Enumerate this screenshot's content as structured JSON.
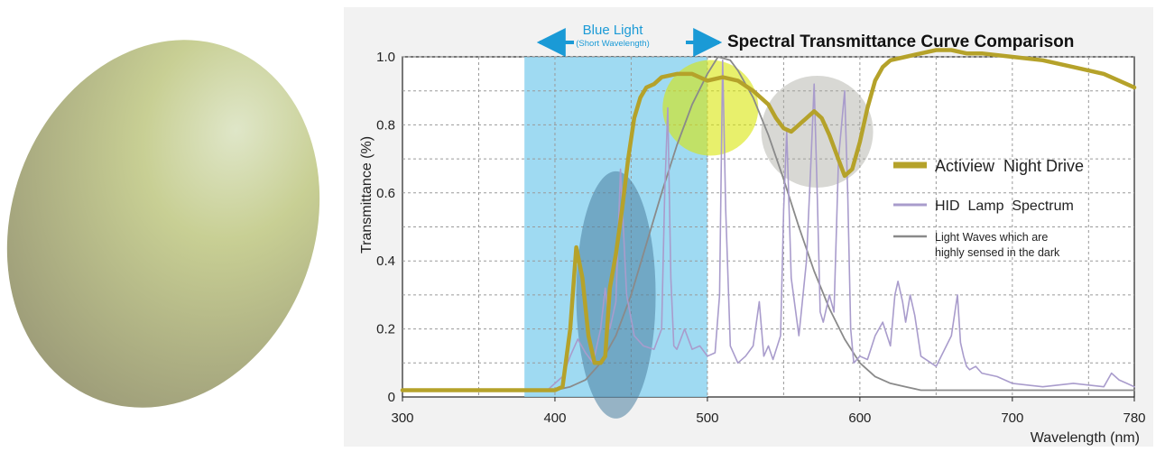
{
  "chart_data": {
    "type": "line",
    "title": "Spectral Transmittance Curve Comparison",
    "xlabel": "Wavelength (nm)",
    "ylabel": "Transmittance (%)",
    "xlim": [
      300,
      780
    ],
    "ylim": [
      0,
      1.0
    ],
    "x_ticks": [
      "300",
      "400",
      "500",
      "600",
      "700",
      "780"
    ],
    "x_tick_values": [
      300,
      400,
      500,
      600,
      700,
      780
    ],
    "y_ticks": [
      "0",
      "0.2",
      "0.4",
      "0.6",
      "0.8",
      "1.0"
    ],
    "y_tick_values": [
      0,
      0.2,
      0.4,
      0.6,
      0.8,
      1.0
    ],
    "grid": true,
    "legend_position": "right",
    "blue_light_band": {
      "label": "Blue Light",
      "sublabel": "(Short Wavelength)",
      "range": [
        380,
        500
      ],
      "color": "#8ed3f0"
    },
    "highlights": [
      {
        "shape": "ellipse",
        "center": [
          440,
          0.3
        ],
        "color": "#4a7fa0"
      },
      {
        "shape": "circle",
        "center": [
          502,
          0.85
        ],
        "color": "#d8e60a"
      },
      {
        "shape": "circle",
        "center": [
          572,
          0.78
        ],
        "color": "#a8a8a0"
      }
    ],
    "series": [
      {
        "name": "Actiview  Night Drive",
        "color": "#b5a22a",
        "x": [
          300,
          390,
          400,
          405,
          410,
          414,
          418,
          422,
          426,
          430,
          433,
          436,
          440,
          444,
          448,
          452,
          456,
          460,
          465,
          470,
          480,
          490,
          500,
          510,
          520,
          530,
          540,
          545,
          550,
          555,
          560,
          565,
          570,
          575,
          580,
          585,
          590,
          595,
          600,
          605,
          610,
          615,
          620,
          630,
          640,
          650,
          660,
          670,
          680,
          700,
          720,
          740,
          760,
          780
        ],
        "values": [
          0.02,
          0.02,
          0.02,
          0.03,
          0.2,
          0.44,
          0.35,
          0.18,
          0.1,
          0.1,
          0.12,
          0.32,
          0.42,
          0.55,
          0.7,
          0.82,
          0.88,
          0.91,
          0.92,
          0.94,
          0.95,
          0.95,
          0.93,
          0.94,
          0.93,
          0.9,
          0.86,
          0.82,
          0.79,
          0.78,
          0.8,
          0.82,
          0.84,
          0.82,
          0.77,
          0.71,
          0.65,
          0.67,
          0.75,
          0.85,
          0.93,
          0.97,
          0.99,
          1.0,
          1.01,
          1.02,
          1.02,
          1.01,
          1.01,
          1.0,
          0.99,
          0.97,
          0.95,
          0.91
        ]
      },
      {
        "name": "HID  Lamp  Spectrum",
        "color": "#a99ccc",
        "x": [
          300,
          395,
          405,
          410,
          415,
          420,
          425,
          430,
          433,
          436,
          440,
          443,
          447,
          452,
          458,
          465,
          470,
          472,
          474,
          476,
          478,
          480,
          485,
          490,
          495,
          500,
          505,
          508,
          510,
          512,
          515,
          520,
          525,
          530,
          534,
          537,
          540,
          543,
          548,
          550,
          552,
          555,
          560,
          565,
          568,
          570,
          572,
          574,
          576,
          580,
          583,
          586,
          590,
          592,
          594,
          596,
          600,
          605,
          610,
          615,
          620,
          623,
          625,
          628,
          630,
          633,
          636,
          640,
          650,
          660,
          664,
          666,
          668,
          670,
          672,
          676,
          680,
          690,
          700,
          720,
          740,
          760,
          765,
          770,
          775,
          780
        ],
        "values": [
          0.02,
          0.02,
          0.06,
          0.12,
          0.17,
          0.13,
          0.1,
          0.2,
          0.32,
          0.2,
          0.28,
          0.67,
          0.3,
          0.18,
          0.15,
          0.14,
          0.2,
          0.6,
          0.85,
          0.35,
          0.15,
          0.14,
          0.2,
          0.14,
          0.15,
          0.12,
          0.13,
          0.3,
          0.99,
          0.55,
          0.15,
          0.1,
          0.12,
          0.15,
          0.28,
          0.12,
          0.15,
          0.11,
          0.18,
          0.55,
          0.78,
          0.35,
          0.18,
          0.4,
          0.7,
          0.92,
          0.6,
          0.25,
          0.22,
          0.3,
          0.25,
          0.7,
          0.9,
          0.6,
          0.2,
          0.1,
          0.12,
          0.11,
          0.18,
          0.22,
          0.15,
          0.3,
          0.34,
          0.28,
          0.22,
          0.3,
          0.24,
          0.12,
          0.09,
          0.18,
          0.3,
          0.16,
          0.12,
          0.09,
          0.08,
          0.09,
          0.07,
          0.06,
          0.04,
          0.03,
          0.04,
          0.03,
          0.07,
          0.05,
          0.04,
          0.03
        ]
      },
      {
        "name": "Light Waves which are highly sensed in the dark",
        "color": "#8a8a8a",
        "x": [
          300,
          390,
          400,
          410,
          420,
          430,
          440,
          450,
          460,
          470,
          480,
          490,
          500,
          507,
          515,
          520,
          530,
          540,
          550,
          560,
          570,
          580,
          590,
          600,
          610,
          620,
          630,
          640,
          660,
          680,
          700,
          780
        ],
        "values": [
          0.02,
          0.02,
          0.02,
          0.03,
          0.05,
          0.1,
          0.18,
          0.3,
          0.45,
          0.6,
          0.74,
          0.86,
          0.95,
          1.0,
          0.99,
          0.96,
          0.88,
          0.77,
          0.64,
          0.5,
          0.37,
          0.26,
          0.17,
          0.1,
          0.06,
          0.04,
          0.03,
          0.02,
          0.02,
          0.02,
          0.02,
          0.02
        ]
      }
    ]
  }
}
